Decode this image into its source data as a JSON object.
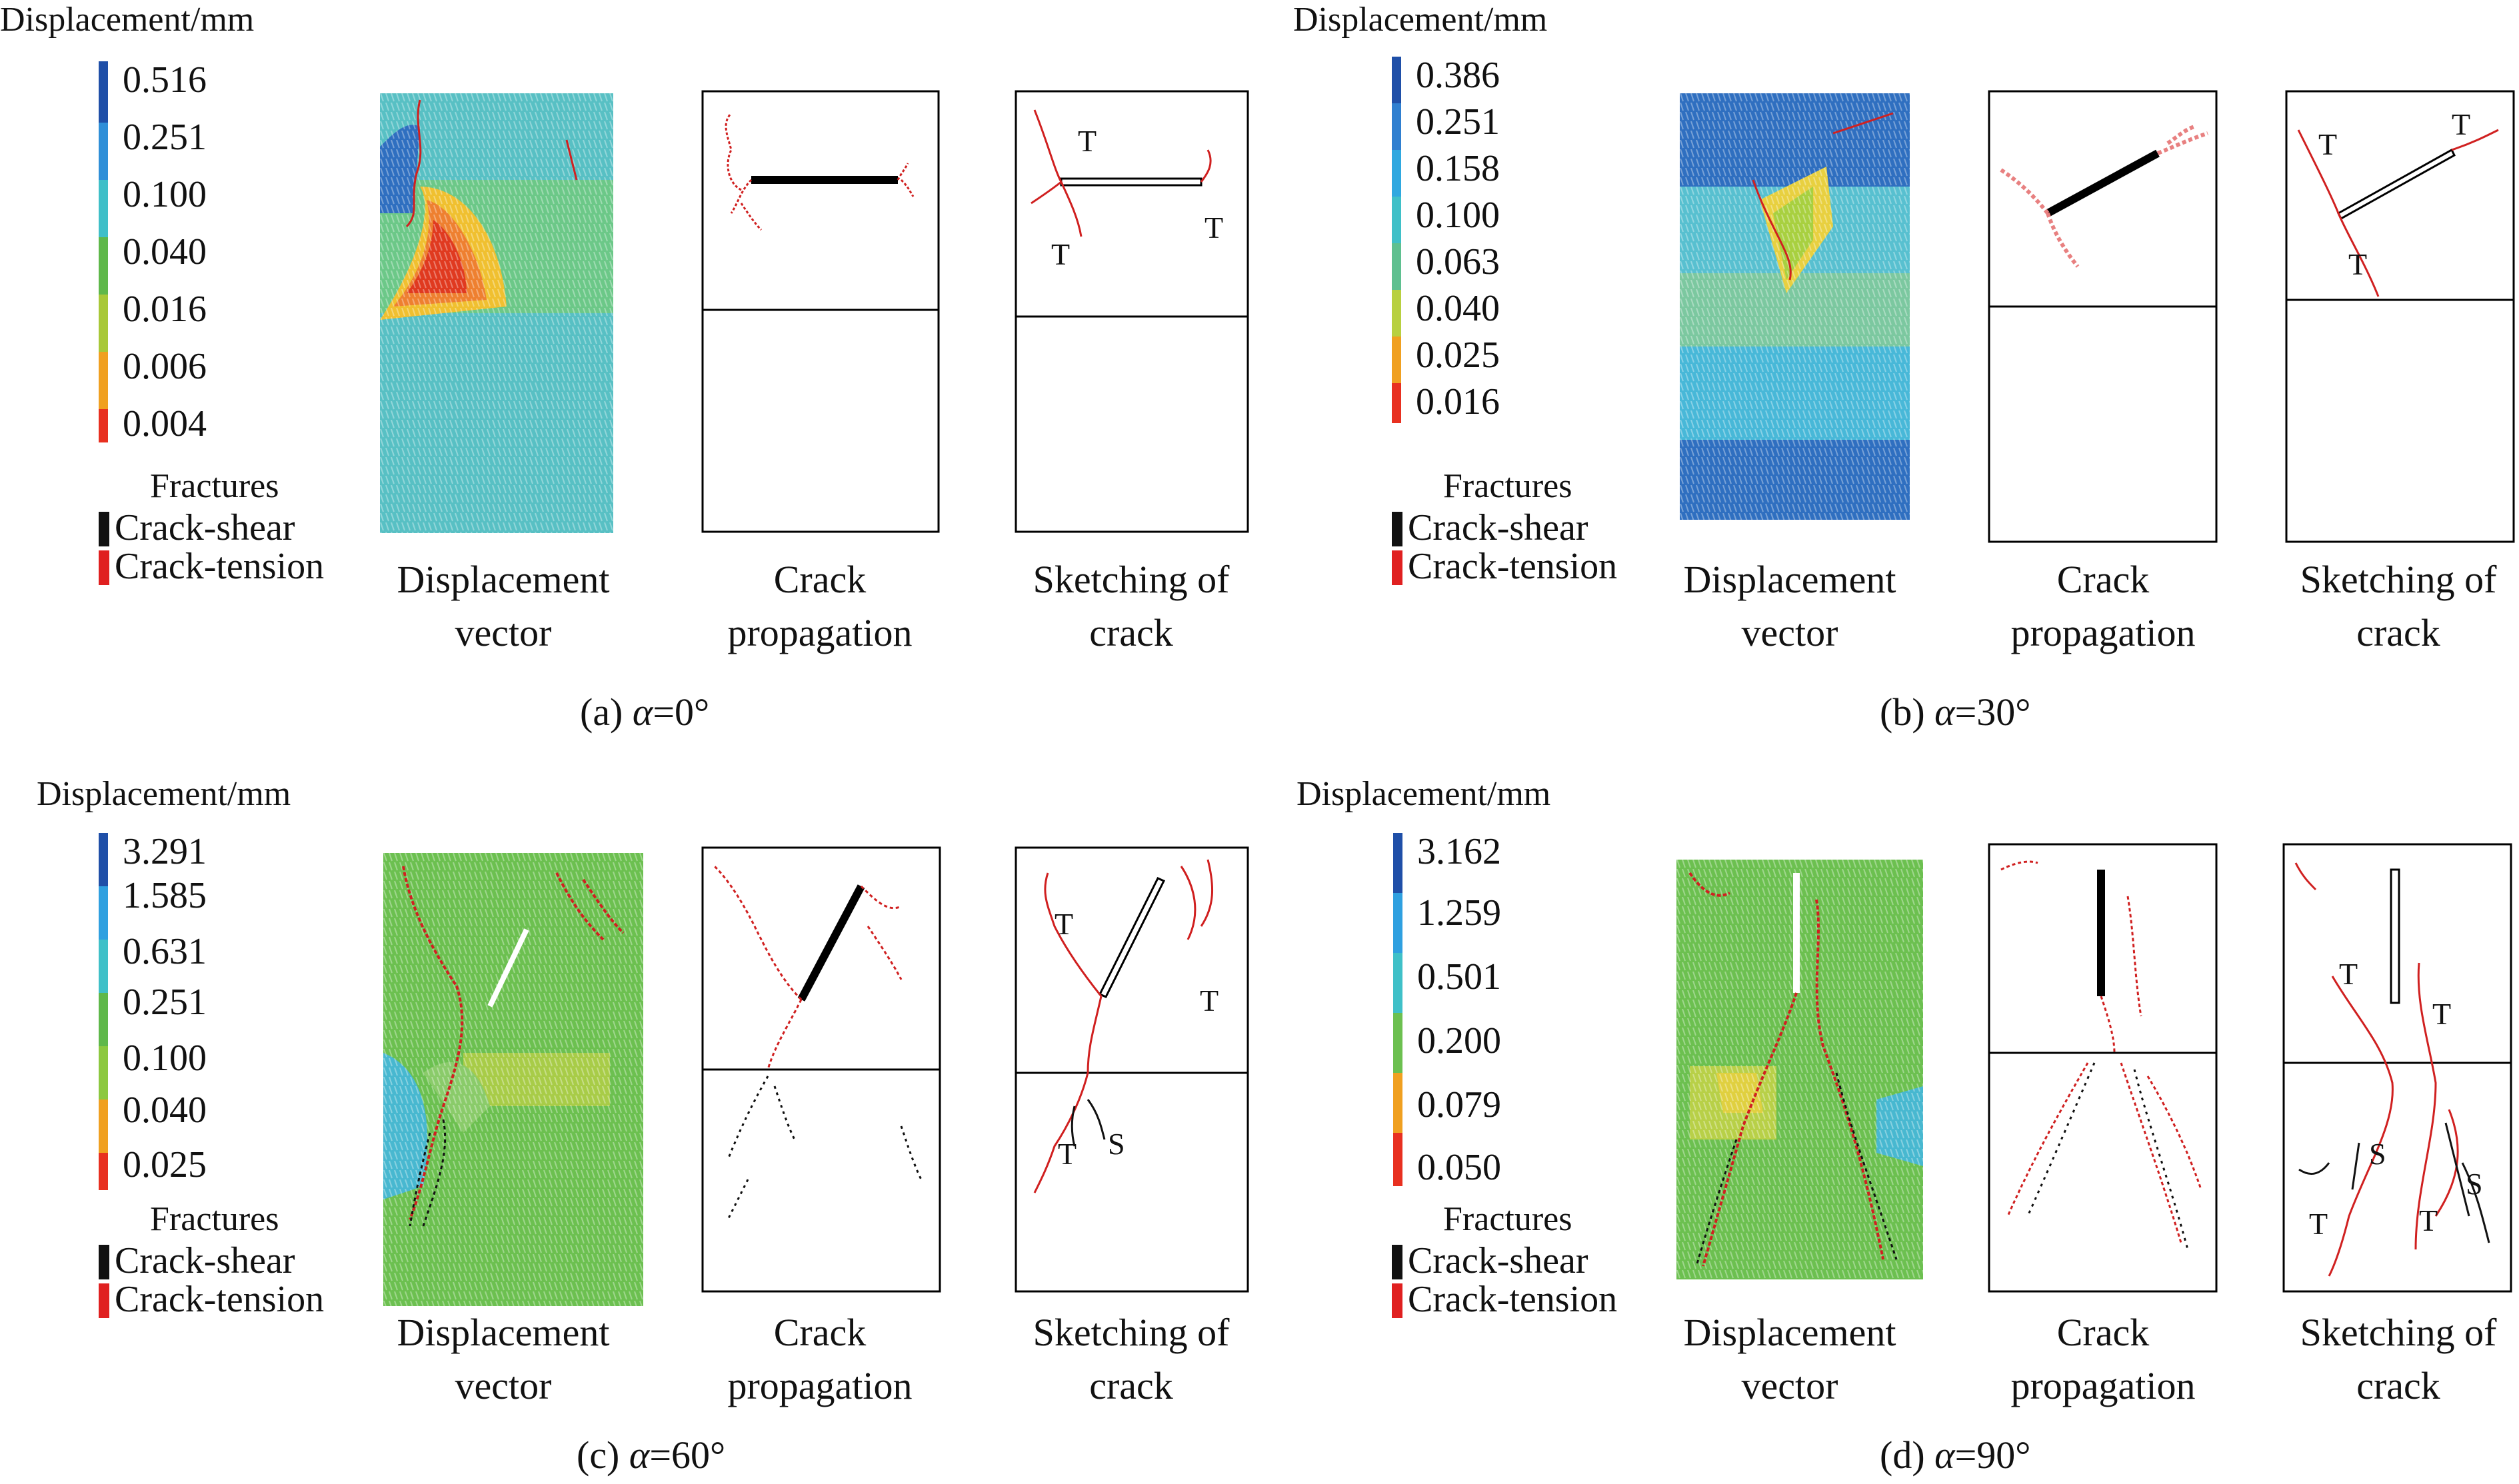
{
  "legend_title": "Displacement/mm",
  "fractures_title": "Fractures",
  "crack_shear_label": "Crack-shear",
  "crack_tension_label": "Crack-tension",
  "crack_shear_color": "#111111",
  "crack_tension_color": "#e02020",
  "col_labels": {
    "displacement_1": "Displacement",
    "displacement_2": "vector",
    "propagation_1": "Crack",
    "propagation_2": "propagation",
    "sketch_1": "Sketching of",
    "sketch_2": "crack"
  },
  "panels": [
    {
      "id": "a",
      "caption_prefix": "(a) ",
      "alpha_symbol": "α",
      "caption_value": "=0°",
      "scale": [
        "0.516",
        "0.251",
        "0.100",
        "0.040",
        "0.016",
        "0.006",
        "0.004"
      ],
      "sketch_labels": [
        "T",
        "T",
        "T"
      ]
    },
    {
      "id": "b",
      "caption_prefix": "(b) ",
      "alpha_symbol": "α",
      "caption_value": "=30°",
      "scale": [
        "0.386",
        "0.251",
        "0.158",
        "0.100",
        "0.063",
        "0.040",
        "0.025",
        "0.016"
      ],
      "sketch_labels": [
        "T",
        "T",
        "T"
      ]
    },
    {
      "id": "c",
      "caption_prefix": "(c) ",
      "alpha_symbol": "α",
      "caption_value": "=60°",
      "scale": [
        "3.291",
        "1.585",
        "0.631",
        "0.251",
        "0.100",
        "0.040",
        "0.025"
      ],
      "sketch_labels": [
        "T",
        "T",
        "T",
        "S"
      ]
    },
    {
      "id": "d",
      "caption_prefix": "(d) ",
      "alpha_symbol": "α",
      "caption_value": "=90°",
      "scale": [
        "3.162",
        "1.259",
        "0.501",
        "0.200",
        "0.079",
        "0.050"
      ],
      "sketch_labels": [
        "T",
        "T",
        "S",
        "S",
        "T",
        "T"
      ]
    }
  ]
}
